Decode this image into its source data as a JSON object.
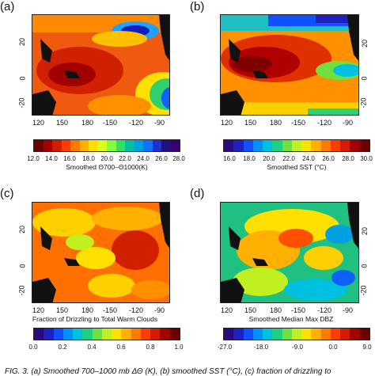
{
  "panels": [
    {
      "label": "(a)",
      "colorbar_ticks": [
        "12.0",
        "14.0",
        "16.0",
        "18.0",
        "20.0",
        "22.0",
        "24.0",
        "26.0",
        "28.0"
      ],
      "colorbar_title": "Smoothed Θ700–Θ1000(K)",
      "colorbar_colors": [
        "#6a0000",
        "#a50000",
        "#d41d00",
        "#ff3d00",
        "#ff7a00",
        "#ffb000",
        "#ffe000",
        "#d8ff20",
        "#80ff40",
        "#30e060",
        "#00c0a0",
        "#00a0e0",
        "#1070ff",
        "#2030d0",
        "#201080",
        "#3a0070"
      ]
    },
    {
      "label": "(b)",
      "colorbar_ticks": [
        "16.0",
        "18.0",
        "20.0",
        "22.0",
        "24.0",
        "26.0",
        "28.0",
        "30.0"
      ],
      "colorbar_title": "Smoothed SST (°C)",
      "colorbar_colors": [
        "#2a0a80",
        "#2020c0",
        "#1050ff",
        "#0090ff",
        "#00c0e0",
        "#20d080",
        "#70e040",
        "#c0f020",
        "#ffe000",
        "#ffb000",
        "#ff7a00",
        "#ff3d00",
        "#d41d00",
        "#a50000",
        "#6a0000"
      ]
    },
    {
      "label": "(c)",
      "colorbar_ticks": [
        "0.0",
        "0.2",
        "0.4",
        "0.6",
        "0.8",
        "1.0"
      ],
      "colorbar_title": "Fraction of Drizzling to Total Warm Clouds",
      "colorbar_colors": [
        "#2a0a80",
        "#2020c0",
        "#1050ff",
        "#0090ff",
        "#00c0e0",
        "#20d080",
        "#70e040",
        "#c0f020",
        "#ffe000",
        "#ffb000",
        "#ff7a00",
        "#ff3d00",
        "#d41d00",
        "#a50000",
        "#6a0000"
      ]
    },
    {
      "label": "(d)",
      "colorbar_ticks": [
        "-27.0",
        "-18.0",
        "-9.0",
        "0.0",
        "9.0"
      ],
      "colorbar_title": "Smoothed Median Max DBZ",
      "colorbar_colors": [
        "#2a0a80",
        "#2020c0",
        "#1050ff",
        "#0090ff",
        "#00c0e0",
        "#20d080",
        "#70e040",
        "#c0f020",
        "#ffe000",
        "#ffb000",
        "#ff7a00",
        "#ff3d00",
        "#d41d00",
        "#a50000",
        "#6a0000"
      ]
    }
  ],
  "x_ticks": [
    "120",
    "150",
    "180",
    "-150",
    "-120",
    "-90"
  ],
  "y_ticks_left": [
    "20",
    "0",
    "-20"
  ],
  "y_ticks_right": [
    "20",
    "0",
    "-20"
  ],
  "caption": "FIG. 3. (a) Smoothed 700–1000 mb ΔΘ (K), (b) smoothed SST (°C), (c) fraction of drizzling to"
}
